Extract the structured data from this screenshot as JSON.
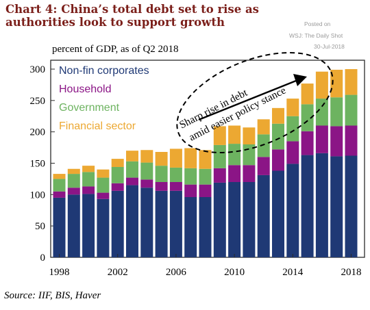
{
  "title": "Chart 4:  China’s total debt set to rise as authorities look to support growth",
  "watermark": {
    "posted_on": "Posted on",
    "site": "WSJ: The Daily Shot",
    "date": "30-Jul-2018"
  },
  "source": "Source: IIF, BIS, Haver",
  "colors": {
    "corporates": "#1f3975",
    "household": "#8b1586",
    "government": "#6db360",
    "financial": "#eca832",
    "border": "#2a2a2a"
  },
  "annotation": {
    "line1": "Sharp rise in debt",
    "line2": "amid easier policy stance"
  },
  "chart_data": {
    "type": "bar",
    "stacked": true,
    "title": "Chart 4:  China’s total debt set to rise as authorities look to support growth",
    "ylabel": "percent of GDP, as of Q2 2018",
    "xlabel": "",
    "ylim": [
      0,
      300
    ],
    "yticks": [
      0,
      50,
      100,
      150,
      200,
      250,
      300
    ],
    "xtick_labels": [
      "1998",
      "2002",
      "2006",
      "2010",
      "2014",
      "2018"
    ],
    "legend_position": "top-left",
    "grid": false,
    "categories": [
      "1998",
      "1999",
      "2000",
      "2001",
      "2002",
      "2003",
      "2004",
      "2005",
      "2006",
      "2007",
      "2008",
      "2009",
      "2010",
      "2011",
      "2012",
      "2013",
      "2014",
      "2015",
      "2016",
      "2017",
      "2018"
    ],
    "series": [
      {
        "name": "Non-fin corporates",
        "values": [
          95,
          100,
          101,
          93,
          106,
          115,
          111,
          106,
          106,
          96,
          96,
          119,
          120,
          120,
          131,
          138,
          149,
          163,
          166,
          161,
          162
        ]
      },
      {
        "name": "Household",
        "values": [
          10,
          11,
          12,
          10,
          12,
          12,
          13,
          14,
          14,
          20,
          20,
          23,
          27,
          27,
          29,
          34,
          36,
          38,
          44,
          48,
          48
        ]
      },
      {
        "name": "Government",
        "values": [
          20,
          22,
          23,
          24,
          26,
          26,
          27,
          26,
          23,
          26,
          25,
          37,
          34,
          33,
          36,
          41,
          40,
          43,
          43,
          46,
          49
        ]
      },
      {
        "name": "Financial sector",
        "values": [
          8,
          8,
          10,
          13,
          13,
          17,
          20,
          22,
          30,
          32,
          30,
          30,
          29,
          27,
          24,
          25,
          28,
          33,
          43,
          44,
          41
        ]
      }
    ]
  }
}
